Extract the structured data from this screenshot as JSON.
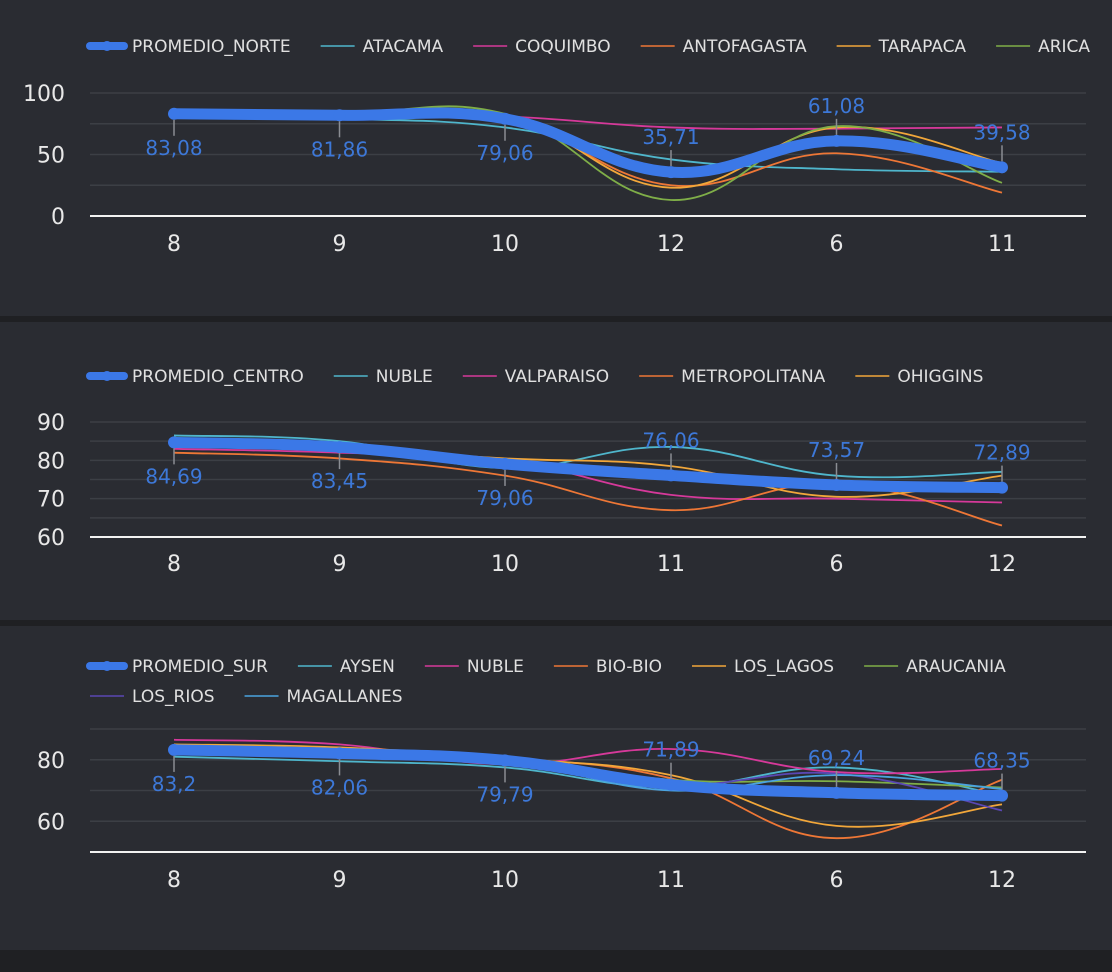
{
  "palette": {
    "avg": "#3b78e7",
    "teal": "#4fb6cc",
    "pink": "#d6399a",
    "orange": "#ee7736",
    "yellow": "#f2a73a",
    "green": "#7fae48",
    "purple": "#5a47b3",
    "sky": "#4aa3df",
    "label": "#3d78d8",
    "axis_text": "#e8e8e8",
    "legend_text": "#e0e0e0",
    "grid": "#3c3f45"
  },
  "chart_data": [
    {
      "type": "line",
      "categories": [
        "8",
        "9",
        "10",
        "12",
        "6",
        "11"
      ],
      "ylim": [
        0,
        100
      ],
      "yticks": [
        0,
        50,
        100
      ],
      "grid": true,
      "legend_position": "top-left",
      "series": [
        {
          "name": "PROMEDIO_NORTE",
          "color": "avg",
          "emphasis": true,
          "values": [
            83.08,
            81.86,
            79.06,
            35.71,
            61.08,
            39.58
          ],
          "labels": [
            "83,08",
            "81,86",
            "79,06",
            "35,71",
            "61,08",
            "39,58"
          ]
        },
        {
          "name": "ATACAMA",
          "color": "teal",
          "values": [
            80,
            79,
            72,
            46,
            38,
            36
          ]
        },
        {
          "name": "COQUIMBO",
          "color": "pink",
          "values": [
            84,
            83,
            81,
            72,
            71,
            72
          ]
        },
        {
          "name": "ANTOFAGASTA",
          "color": "orange",
          "values": [
            83,
            82,
            79,
            25,
            51,
            19
          ]
        },
        {
          "name": "TARAPACA",
          "color": "yellow",
          "values": [
            82,
            81,
            82,
            23,
            72,
            43
          ]
        },
        {
          "name": "ARICA",
          "color": "green",
          "values": [
            84,
            83,
            83,
            13,
            73,
            27
          ]
        }
      ]
    },
    {
      "type": "line",
      "categories": [
        "8",
        "9",
        "10",
        "11",
        "6",
        "12"
      ],
      "ylim": [
        60,
        90
      ],
      "yticks": [
        60,
        70,
        80,
        90
      ],
      "grid": true,
      "legend_position": "top-left",
      "series": [
        {
          "name": "PROMEDIO_CENTRO",
          "color": "avg",
          "emphasis": true,
          "values": [
            84.69,
            83.45,
            79.06,
            76.06,
            73.57,
            72.89
          ],
          "labels": [
            "84,69",
            "83,45",
            "79,06",
            "76,06",
            "73,57",
            "72,89"
          ]
        },
        {
          "name": "NUBLE",
          "color": "teal",
          "values": [
            86.5,
            85,
            78,
            83.5,
            76,
            77
          ]
        },
        {
          "name": "VALPARAISO",
          "color": "pink",
          "values": [
            83,
            82,
            80,
            71,
            70,
            69
          ]
        },
        {
          "name": "METROPOLITANA",
          "color": "orange",
          "values": [
            82,
            80.5,
            76,
            67,
            74,
            63
          ]
        },
        {
          "name": "OHIGGINS",
          "color": "yellow",
          "values": [
            85,
            83,
            80.5,
            78.5,
            70.5,
            76
          ]
        }
      ]
    },
    {
      "type": "line",
      "categories": [
        "8",
        "9",
        "10",
        "11",
        "6",
        "12"
      ],
      "ylim": [
        50,
        90
      ],
      "yticks": [
        60,
        80
      ],
      "grid": true,
      "legend_position": "top-left",
      "series": [
        {
          "name": "PROMEDIO_SUR",
          "color": "avg",
          "emphasis": true,
          "values": [
            83.2,
            82.06,
            79.79,
            71.89,
            69.24,
            68.35
          ],
          "labels": [
            "83,2",
            "82,06",
            "79,79",
            "71,89",
            "69,24",
            "68,35"
          ]
        },
        {
          "name": "AYSEN",
          "color": "teal",
          "values": [
            81,
            79.5,
            77.5,
            71,
            77.5,
            68.5
          ]
        },
        {
          "name": "NUBLE",
          "color": "pink",
          "values": [
            86.5,
            85,
            78.5,
            83.5,
            76,
            77
          ]
        },
        {
          "name": "BIO-BIO",
          "color": "orange",
          "values": [
            83.5,
            82,
            80.5,
            74,
            54.5,
            73.5
          ]
        },
        {
          "name": "LOS_LAGOS",
          "color": "yellow",
          "values": [
            85,
            84,
            80.5,
            75,
            58.5,
            65.5
          ]
        },
        {
          "name": "ARAUCANIA",
          "color": "green",
          "values": [
            84,
            83,
            80.5,
            73.5,
            73,
            71
          ]
        },
        {
          "name": "LOS_RIOS",
          "color": "purple",
          "values": [
            82.5,
            81.5,
            81,
            72,
            75.5,
            63.5
          ]
        },
        {
          "name": "MAGALLANES",
          "color": "sky",
          "values": [
            82.5,
            81,
            79.5,
            70,
            75,
            70.5
          ]
        }
      ]
    }
  ]
}
